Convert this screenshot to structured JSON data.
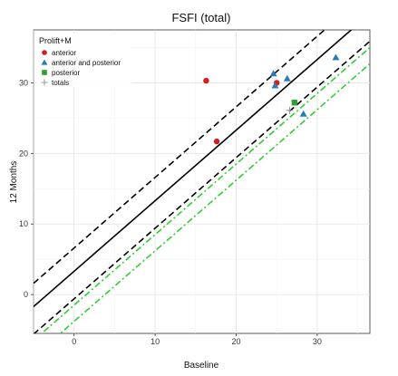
{
  "chart_data": {
    "type": "scatter",
    "title": "FSFI (total)",
    "xlabel": "Baseline",
    "ylabel": "12 Months",
    "xlim": [
      -5,
      36.5
    ],
    "ylim": [
      -5.5,
      37.5
    ],
    "x_ticks": [
      0,
      10,
      20,
      30
    ],
    "y_ticks": [
      0,
      10,
      20,
      30
    ],
    "grid": true,
    "legend_title": "Prolift+M",
    "legend_position": "top-left",
    "series": [
      {
        "name": "anterior",
        "marker": "circle",
        "color": "#d7191c",
        "points": [
          [
            16.3,
            30.3
          ],
          [
            17.6,
            21.7
          ],
          [
            25.0,
            30.0
          ]
        ]
      },
      {
        "name": "anterior and posterior",
        "marker": "triangle",
        "color": "#2b7bba",
        "points": [
          [
            24.6,
            31.3
          ],
          [
            26.3,
            30.6
          ],
          [
            24.8,
            29.6
          ],
          [
            32.3,
            33.6
          ],
          [
            28.3,
            25.6
          ]
        ]
      },
      {
        "name": "posterior",
        "marker": "square",
        "color": "#2ca02c",
        "points": [
          [
            27.2,
            27.2
          ]
        ]
      },
      {
        "name": "totals",
        "marker": "plus",
        "color": "#999999",
        "points": [
          [
            26.6,
            26.1
          ]
        ]
      }
    ],
    "reference_lines": [
      {
        "style": "solid",
        "color": "#000000",
        "slope": 1,
        "intercept": 3.3
      },
      {
        "style": "dashed",
        "color": "#000000",
        "slope": 1,
        "intercept": 6.6
      },
      {
        "style": "dashed",
        "color": "#000000",
        "slope": 1,
        "intercept": -0.6
      },
      {
        "style": "dash-dot",
        "color": "#33cc33",
        "slope": 1,
        "intercept": -1.5
      },
      {
        "style": "dash-dot",
        "color": "#33cc33",
        "slope": 1,
        "intercept": -3.8
      }
    ]
  }
}
